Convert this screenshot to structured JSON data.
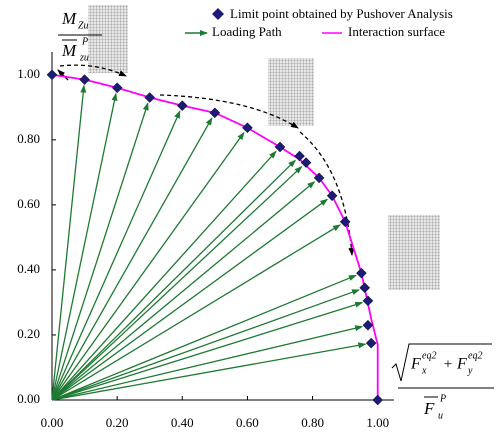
{
  "chart_data": {
    "type": "scatter",
    "xlim": [
      0,
      1.05
    ],
    "ylim": [
      0,
      1.07
    ],
    "xticks": [
      {
        "value": 0,
        "label": "0.00"
      },
      {
        "value": 0.2,
        "label": "0.20"
      },
      {
        "value": 0.4,
        "label": "0.40"
      },
      {
        "value": 0.6,
        "label": "0.60"
      },
      {
        "value": 0.8,
        "label": "0.80"
      },
      {
        "value": 1,
        "label": "1.00"
      }
    ],
    "yticks": [
      {
        "value": 0,
        "label": "0.00"
      },
      {
        "value": 0.2,
        "label": "0.20"
      },
      {
        "value": 0.4,
        "label": "0.40"
      },
      {
        "value": 0.6,
        "label": "0.60"
      },
      {
        "value": 0.8,
        "label": "0.80"
      },
      {
        "value": 1,
        "label": "1.00"
      }
    ],
    "series": [
      {
        "name": "Limit point obtained by Pushover Analysis",
        "color": "#1c1c78",
        "x": [
          0,
          0.1,
          0.2,
          0.3,
          0.4,
          0.5,
          0.6,
          0.7,
          0.76,
          0.78,
          0.82,
          0.86,
          0.9,
          0.95,
          0.96,
          0.97,
          0.97,
          0.98,
          1.0
        ],
        "values": [
          1,
          0.985,
          0.96,
          0.93,
          0.905,
          0.883,
          0.837,
          0.778,
          0.75,
          0.73,
          0.683,
          0.628,
          0.548,
          0.39,
          0.345,
          0.305,
          0.23,
          0.175,
          0
        ]
      },
      {
        "name": "Interaction surface",
        "color": "#ff00ff",
        "x": [
          0,
          0.1,
          0.2,
          0.3,
          0.4,
          0.5,
          0.6,
          0.7,
          0.76,
          0.82,
          0.86,
          0.9,
          0.95,
          0.98,
          1.0,
          1.0
        ],
        "values": [
          1,
          0.985,
          0.96,
          0.93,
          0.905,
          0.883,
          0.837,
          0.778,
          0.74,
          0.683,
          0.628,
          0.548,
          0.39,
          0.25,
          0.17,
          0
        ]
      }
    ],
    "loading_path": {
      "name": "Loading Path",
      "color": "#1e7a32"
    },
    "y_label": {
      "num": "M",
      "num_sub": "Zu",
      "den": "M",
      "den_sub": "zu",
      "den_sup": "P"
    },
    "x_label": {
      "f1": "F",
      "f1_sub": "x",
      "f1_sup": "eq2",
      "plus": " + ",
      "f2": "F",
      "f2_sub": "y",
      "f2_sup": "eq2",
      "den": "F",
      "den_sub": "u",
      "den_sup": "P"
    }
  }
}
